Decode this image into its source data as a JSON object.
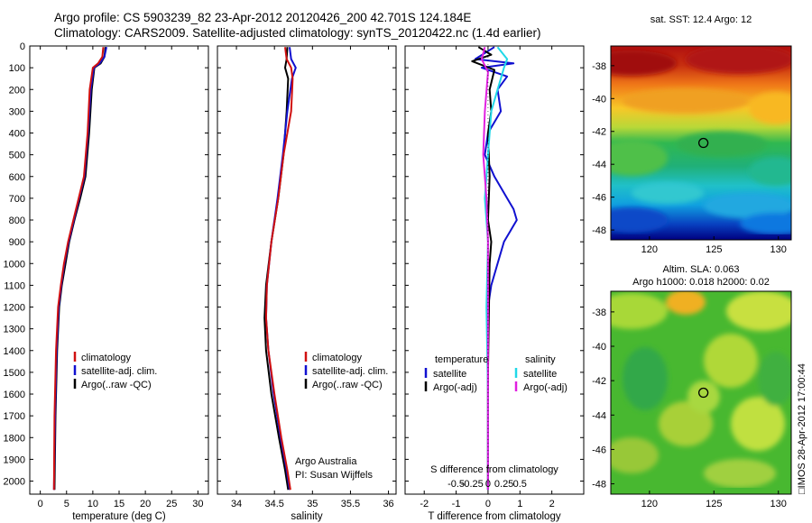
{
  "title": {
    "line1": "Argo profile: CS 5903239_82 23-Apr-2012 20120426_200 42.701S 124.184E",
    "line2": "Climatology: CARS2009. Satellite-adjusted climatology: synTS_20120422.nc (1.4d earlier)"
  },
  "colors": {
    "clim": "#d01010",
    "sat": "#1010d0",
    "argo": "#000000",
    "cyan": "#20d8e8",
    "magenta": "#e020e0"
  },
  "depth_axis": {
    "ticks": [
      0,
      100,
      200,
      300,
      400,
      500,
      600,
      700,
      800,
      900,
      1000,
      1100,
      1200,
      1300,
      1400,
      1500,
      1600,
      1700,
      1800,
      1900,
      2000
    ]
  },
  "chart_data": [
    {
      "type": "line",
      "name": "temperature-profile",
      "xlabel": "temperature (deg C)",
      "xticks": [
        0,
        5,
        10,
        15,
        20,
        25,
        30
      ],
      "xlim": [
        -2,
        32
      ],
      "ylim": [
        2060,
        0
      ],
      "series": [
        {
          "name": "Argo(..raw -QC)",
          "color_key": "argo",
          "x": [
            12.4,
            12.2,
            11.5,
            10.3,
            9.8,
            9.3,
            8.6,
            7.6,
            6.5,
            5.5,
            4.8,
            4.1,
            3.6,
            3.2,
            2.9,
            2.7
          ],
          "y": [
            5,
            50,
            80,
            100,
            200,
            400,
            600,
            700,
            800,
            900,
            1000,
            1100,
            1200,
            1400,
            1700,
            2040
          ]
        },
        {
          "name": "satellite-adj. clim.",
          "color_key": "sat",
          "x": [
            12.6,
            12.2,
            11.3,
            10.2,
            9.6,
            9.1,
            8.4,
            7.4,
            6.4,
            5.4,
            4.6,
            4.0,
            3.5,
            3.1,
            2.8,
            2.6
          ],
          "y": [
            5,
            50,
            80,
            100,
            200,
            400,
            600,
            700,
            800,
            900,
            1000,
            1100,
            1200,
            1400,
            1700,
            2040
          ]
        },
        {
          "name": "climatology",
          "color_key": "clim",
          "x": [
            12.0,
            11.8,
            11.0,
            10.0,
            9.4,
            9.0,
            8.3,
            7.3,
            6.3,
            5.3,
            4.5,
            3.9,
            3.4,
            3.0,
            2.7,
            2.6
          ],
          "y": [
            5,
            50,
            80,
            100,
            200,
            400,
            600,
            700,
            800,
            900,
            1000,
            1100,
            1200,
            1400,
            1700,
            2040
          ]
        }
      ],
      "legend": [
        "climatology",
        "satellite-adj. clim.",
        "Argo(..raw -QC)"
      ]
    },
    {
      "type": "line",
      "name": "salinity-profile",
      "xlabel": "salinity",
      "xticks": [
        34,
        34.5,
        35,
        35.5,
        36
      ],
      "xlim": [
        33.75,
        36.1
      ],
      "ylim": [
        2060,
        0
      ],
      "series": [
        {
          "name": "Argo(..raw -QC)",
          "color_key": "argo",
          "x": [
            34.67,
            34.66,
            34.64,
            34.68,
            34.66,
            34.62,
            34.55,
            34.46,
            34.39,
            34.37,
            34.39,
            34.46,
            34.56,
            34.64,
            34.68
          ],
          "y": [
            5,
            60,
            100,
            150,
            300,
            500,
            700,
            900,
            1100,
            1250,
            1400,
            1600,
            1800,
            1950,
            2040
          ]
        },
        {
          "name": "satellite-adj. clim.",
          "color_key": "sat",
          "x": [
            34.7,
            34.72,
            34.78,
            34.73,
            34.67,
            34.61,
            34.54,
            34.46,
            34.4,
            34.39,
            34.42,
            34.49,
            34.58,
            34.66,
            34.7
          ],
          "y": [
            5,
            60,
            100,
            150,
            300,
            500,
            700,
            900,
            1100,
            1250,
            1400,
            1600,
            1800,
            1950,
            2040
          ]
        },
        {
          "name": "climatology",
          "color_key": "clim",
          "x": [
            34.64,
            34.66,
            34.72,
            34.74,
            34.72,
            34.62,
            34.55,
            34.46,
            34.4,
            34.39,
            34.42,
            34.5,
            34.59,
            34.67,
            34.71
          ],
          "y": [
            5,
            60,
            100,
            150,
            300,
            500,
            700,
            900,
            1100,
            1250,
            1400,
            1600,
            1800,
            1950,
            2040
          ]
        }
      ],
      "legend": [
        "climatology",
        "satellite-adj. clim.",
        "Argo(..raw -QC)"
      ],
      "annotation": [
        "Argo Australia",
        "PI: Susan Wijffels"
      ]
    },
    {
      "type": "line",
      "name": "difference-profile",
      "xlabel": "T difference from climatology",
      "xlabel_top": "S difference from climatology",
      "xticks": [
        -2,
        -1,
        0,
        1,
        2
      ],
      "xticks_top": [
        "-0.5",
        "-0.25",
        "0",
        "0.25",
        "0.5"
      ],
      "xticks_top_at_T": [
        -2,
        -1,
        0,
        1,
        2
      ],
      "xlim": [
        -2.6,
        3.0
      ],
      "ylim": [
        2060,
        0
      ],
      "series": [
        {
          "name": "satellite",
          "group": "temperature",
          "color_key": "sat",
          "x": [
            0.2,
            -0.4,
            0.8,
            -0.2,
            0.6,
            0.3,
            0.4,
            0.0,
            -0.1,
            0.2,
            0.6,
            0.8,
            0.9,
            0.7,
            0.5,
            0.3,
            0.1,
            0.0,
            0.0,
            0.0
          ],
          "y": [
            5,
            60,
            80,
            100,
            140,
            200,
            300,
            400,
            500,
            600,
            700,
            750,
            800,
            850,
            900,
            1000,
            1100,
            1200,
            1600,
            2040
          ]
        },
        {
          "name": "Argo(-adj)",
          "group": "temperature",
          "color_key": "argo",
          "x": [
            -0.3,
            0.1,
            -0.5,
            0.2,
            0.05,
            0.1,
            0.0,
            0.05,
            0.0,
            0.1,
            0.05,
            0.0,
            0.0
          ],
          "y": [
            5,
            40,
            70,
            110,
            200,
            300,
            400,
            600,
            800,
            900,
            1000,
            1500,
            2040
          ]
        },
        {
          "name": "satellite",
          "group": "salinity",
          "color_key": "cyan",
          "x": [
            0.3,
            0.6,
            0.5,
            0.4,
            0.3,
            0.1,
            0.0,
            -0.1,
            0.0,
            -0.05,
            0.0,
            0.0
          ],
          "y": [
            5,
            60,
            100,
            150,
            200,
            300,
            500,
            700,
            900,
            1200,
            1600,
            2040
          ]
        },
        {
          "name": "Argo(-adj)",
          "group": "salinity",
          "color_key": "magenta",
          "x": [
            -0.1,
            -0.2,
            0.0,
            -0.1,
            -0.15,
            -0.05,
            0.0,
            0.0,
            0.0,
            0.0
          ],
          "y": [
            5,
            60,
            120,
            300,
            500,
            700,
            900,
            1200,
            1600,
            2040
          ]
        }
      ],
      "legend_groups": [
        {
          "title": "temperature",
          "items": [
            "satellite",
            "Argo(-adj)"
          ]
        },
        {
          "title": "salinity",
          "items": [
            "satellite",
            "Argo(-adj)"
          ]
        }
      ]
    },
    {
      "type": "heatmap",
      "name": "sst-map",
      "title": "sat. SST: 12.4  Argo: 12",
      "xticks": [
        120,
        125,
        130
      ],
      "yticks": [
        -38,
        -40,
        -42,
        -44,
        -46,
        -48
      ],
      "xlim": [
        117,
        131
      ],
      "ylim": [
        -48.6,
        -36.8
      ],
      "marker": {
        "lon": 124.184,
        "lat": -42.701
      }
    },
    {
      "type": "heatmap",
      "name": "sla-map",
      "title_line1": "Altim. SLA: 0.063",
      "title_line2": "Argo h1000: 0.018 h2000: 0.02",
      "xticks": [
        120,
        125,
        130
      ],
      "yticks": [
        -38,
        -40,
        -42,
        -44,
        -46,
        -48
      ],
      "xlim": [
        117,
        131
      ],
      "ylim": [
        -48.6,
        -36.8
      ],
      "marker": {
        "lon": 124.184,
        "lat": -42.701
      }
    }
  ],
  "side_label": "□IMOS 28-Apr-2012 17:00:44"
}
